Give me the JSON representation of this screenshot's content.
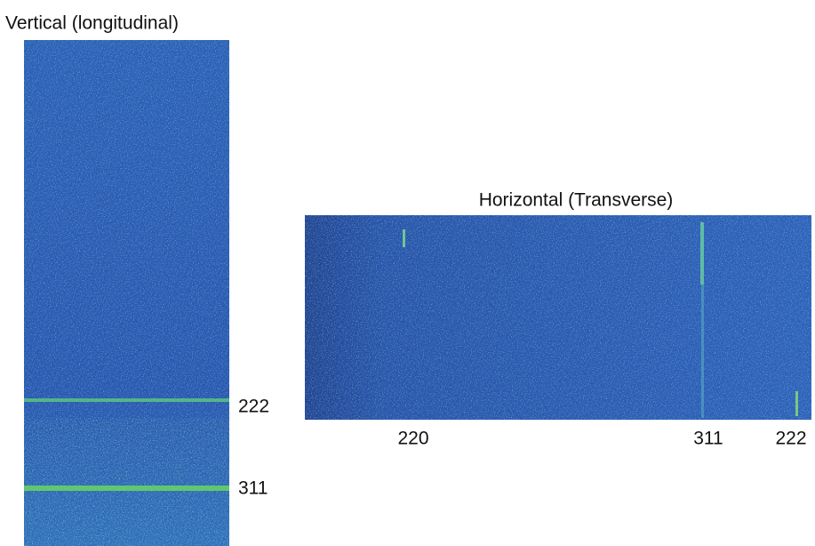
{
  "left_panel": {
    "title": "Vertical (longitudinal)",
    "labels": [
      "222",
      "311"
    ]
  },
  "right_panel": {
    "title": "Horizontal (Transverse)",
    "labels": [
      "220",
      "311",
      "222"
    ]
  }
}
